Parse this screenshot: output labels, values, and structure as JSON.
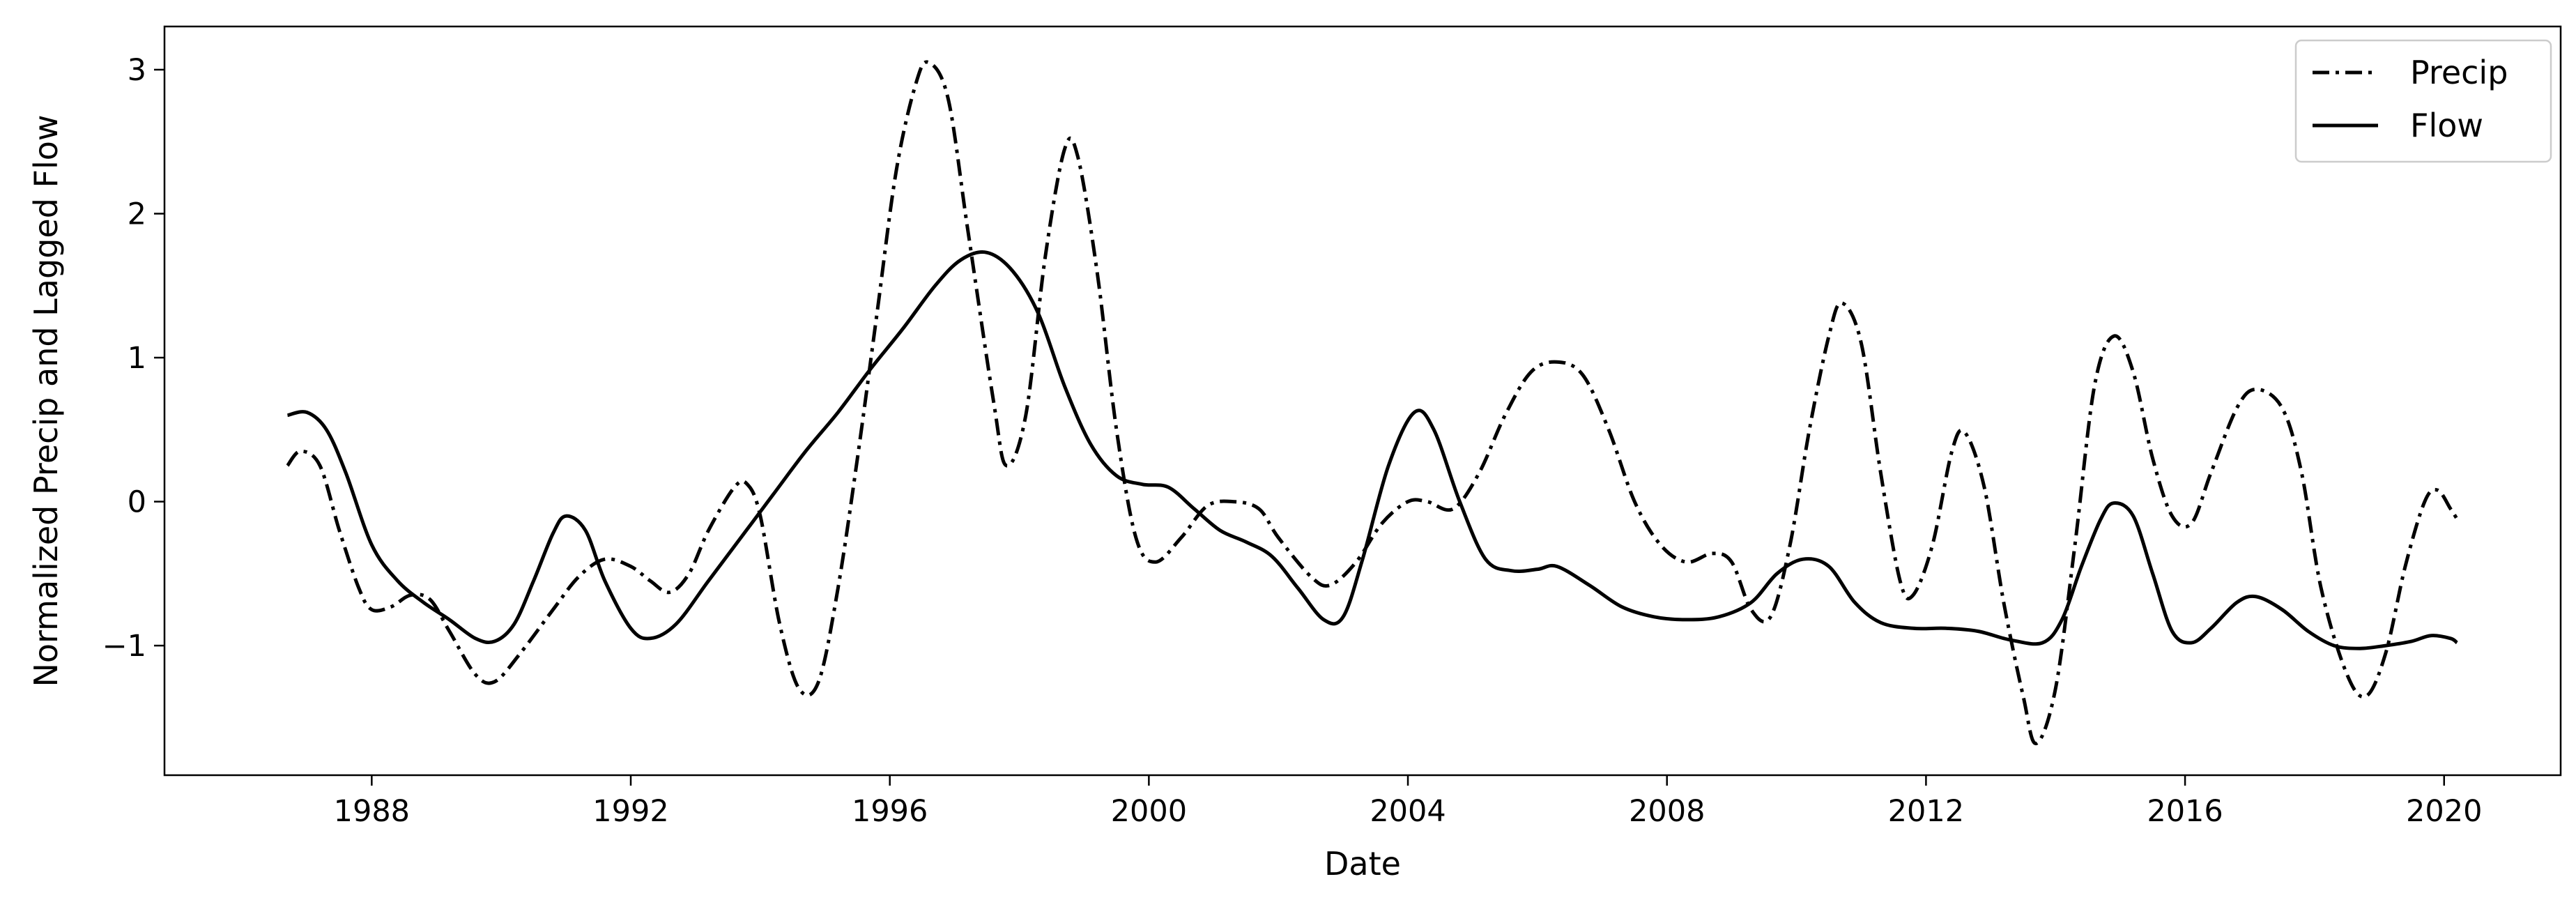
{
  "chart_data": {
    "type": "line",
    "title": "",
    "xlabel": "Date",
    "ylabel": "Normalized Precip and Lagged Flow",
    "xlim": [
      1984.8,
      2021.8
    ],
    "ylim": [
      -1.9,
      3.3
    ],
    "x_ticks": [
      1988,
      1992,
      1996,
      2000,
      2004,
      2008,
      2012,
      2016,
      2020
    ],
    "x_tick_labels": [
      "1988",
      "1992",
      "1996",
      "2000",
      "2004",
      "2008",
      "2012",
      "2016",
      "2020"
    ],
    "y_ticks": [
      -1,
      0,
      1,
      2,
      3
    ],
    "y_tick_labels": [
      "−1",
      "0",
      "1",
      "2",
      "3"
    ],
    "grid": false,
    "legend_position": "top-right",
    "series": [
      {
        "name": "Precip",
        "style": "dashdot",
        "color": "#000000",
        "points": [
          [
            1986.7,
            0.25
          ],
          [
            1986.9,
            0.35
          ],
          [
            1987.2,
            0.25
          ],
          [
            1987.5,
            -0.2
          ],
          [
            1987.8,
            -0.6
          ],
          [
            1988.0,
            -0.75
          ],
          [
            1988.3,
            -0.73
          ],
          [
            1988.6,
            -0.65
          ],
          [
            1988.9,
            -0.68
          ],
          [
            1989.2,
            -0.9
          ],
          [
            1989.6,
            -1.2
          ],
          [
            1989.9,
            -1.25
          ],
          [
            1990.3,
            -1.05
          ],
          [
            1990.8,
            -0.75
          ],
          [
            1991.2,
            -0.52
          ],
          [
            1991.6,
            -0.4
          ],
          [
            1992.0,
            -0.45
          ],
          [
            1992.3,
            -0.55
          ],
          [
            1992.6,
            -0.63
          ],
          [
            1992.9,
            -0.5
          ],
          [
            1993.2,
            -0.2
          ],
          [
            1993.6,
            0.1
          ],
          [
            1993.8,
            0.12
          ],
          [
            1994.0,
            -0.1
          ],
          [
            1994.3,
            -0.85
          ],
          [
            1994.6,
            -1.3
          ],
          [
            1994.9,
            -1.25
          ],
          [
            1995.2,
            -0.6
          ],
          [
            1995.5,
            0.3
          ],
          [
            1995.8,
            1.3
          ],
          [
            1996.1,
            2.3
          ],
          [
            1996.4,
            2.9
          ],
          [
            1996.6,
            3.05
          ],
          [
            1996.9,
            2.8
          ],
          [
            1997.2,
            1.9
          ],
          [
            1997.6,
            0.7
          ],
          [
            1997.8,
            0.25
          ],
          [
            1998.1,
            0.6
          ],
          [
            1998.4,
            1.7
          ],
          [
            1998.7,
            2.45
          ],
          [
            1998.9,
            2.4
          ],
          [
            1999.2,
            1.6
          ],
          [
            1999.5,
            0.5
          ],
          [
            1999.8,
            -0.25
          ],
          [
            2000.1,
            -0.42
          ],
          [
            2000.5,
            -0.25
          ],
          [
            2000.9,
            -0.03
          ],
          [
            2001.3,
            0.0
          ],
          [
            2001.7,
            -0.05
          ],
          [
            2002.0,
            -0.25
          ],
          [
            2002.5,
            -0.52
          ],
          [
            2002.8,
            -0.58
          ],
          [
            2003.2,
            -0.42
          ],
          [
            2003.6,
            -0.15
          ],
          [
            2004.0,
            0.0
          ],
          [
            2004.3,
            0.0
          ],
          [
            2004.7,
            -0.05
          ],
          [
            2005.1,
            0.2
          ],
          [
            2005.5,
            0.6
          ],
          [
            2005.9,
            0.9
          ],
          [
            2006.3,
            0.97
          ],
          [
            2006.7,
            0.88
          ],
          [
            2007.1,
            0.5
          ],
          [
            2007.5,
            0.0
          ],
          [
            2007.9,
            -0.3
          ],
          [
            2008.3,
            -0.42
          ],
          [
            2008.7,
            -0.36
          ],
          [
            2009.0,
            -0.42
          ],
          [
            2009.3,
            -0.75
          ],
          [
            2009.6,
            -0.8
          ],
          [
            2009.9,
            -0.3
          ],
          [
            2010.2,
            0.5
          ],
          [
            2010.5,
            1.15
          ],
          [
            2010.7,
            1.38
          ],
          [
            2011.0,
            1.1
          ],
          [
            2011.3,
            0.2
          ],
          [
            2011.6,
            -0.55
          ],
          [
            2011.8,
            -0.65
          ],
          [
            2012.1,
            -0.3
          ],
          [
            2012.4,
            0.35
          ],
          [
            2012.6,
            0.48
          ],
          [
            2012.9,
            0.1
          ],
          [
            2013.2,
            -0.7
          ],
          [
            2013.5,
            -1.35
          ],
          [
            2013.7,
            -1.68
          ],
          [
            2014.0,
            -1.3
          ],
          [
            2014.3,
            -0.3
          ],
          [
            2014.6,
            0.8
          ],
          [
            2014.9,
            1.15
          ],
          [
            2015.2,
            0.9
          ],
          [
            2015.5,
            0.3
          ],
          [
            2015.8,
            -0.1
          ],
          [
            2016.1,
            -0.15
          ],
          [
            2016.4,
            0.2
          ],
          [
            2016.8,
            0.65
          ],
          [
            2017.1,
            0.78
          ],
          [
            2017.5,
            0.65
          ],
          [
            2017.8,
            0.2
          ],
          [
            2018.1,
            -0.6
          ],
          [
            2018.5,
            -1.2
          ],
          [
            2018.8,
            -1.35
          ],
          [
            2019.1,
            -1.05
          ],
          [
            2019.4,
            -0.45
          ],
          [
            2019.7,
            0.0
          ],
          [
            2019.9,
            0.08
          ],
          [
            2020.1,
            -0.05
          ],
          [
            2020.2,
            -0.12
          ]
        ]
      },
      {
        "name": "Flow",
        "style": "solid",
        "color": "#000000",
        "points": [
          [
            1986.7,
            0.6
          ],
          [
            1987.0,
            0.62
          ],
          [
            1987.3,
            0.5
          ],
          [
            1987.6,
            0.2
          ],
          [
            1988.0,
            -0.3
          ],
          [
            1988.4,
            -0.55
          ],
          [
            1988.8,
            -0.7
          ],
          [
            1989.2,
            -0.82
          ],
          [
            1989.6,
            -0.95
          ],
          [
            1989.9,
            -0.97
          ],
          [
            1990.2,
            -0.85
          ],
          [
            1990.5,
            -0.55
          ],
          [
            1990.8,
            -0.22
          ],
          [
            1991.0,
            -0.1
          ],
          [
            1991.3,
            -0.2
          ],
          [
            1991.6,
            -0.55
          ],
          [
            1992.0,
            -0.88
          ],
          [
            1992.3,
            -0.95
          ],
          [
            1992.7,
            -0.85
          ],
          [
            1993.2,
            -0.55
          ],
          [
            1993.7,
            -0.25
          ],
          [
            1994.2,
            0.05
          ],
          [
            1994.7,
            0.35
          ],
          [
            1995.2,
            0.62
          ],
          [
            1995.7,
            0.92
          ],
          [
            1996.2,
            1.2
          ],
          [
            1996.7,
            1.5
          ],
          [
            1997.1,
            1.68
          ],
          [
            1997.5,
            1.73
          ],
          [
            1997.9,
            1.6
          ],
          [
            1998.3,
            1.3
          ],
          [
            1998.7,
            0.8
          ],
          [
            1999.1,
            0.4
          ],
          [
            1999.5,
            0.18
          ],
          [
            1999.9,
            0.12
          ],
          [
            2000.3,
            0.1
          ],
          [
            2000.7,
            -0.05
          ],
          [
            2001.1,
            -0.2
          ],
          [
            2001.5,
            -0.28
          ],
          [
            2001.9,
            -0.38
          ],
          [
            2002.3,
            -0.6
          ],
          [
            2002.7,
            -0.82
          ],
          [
            2003.0,
            -0.8
          ],
          [
            2003.3,
            -0.4
          ],
          [
            2003.7,
            0.25
          ],
          [
            2004.1,
            0.62
          ],
          [
            2004.4,
            0.5
          ],
          [
            2004.8,
            0.0
          ],
          [
            2005.2,
            -0.4
          ],
          [
            2005.6,
            -0.48
          ],
          [
            2006.0,
            -0.47
          ],
          [
            2006.3,
            -0.45
          ],
          [
            2006.8,
            -0.58
          ],
          [
            2007.3,
            -0.73
          ],
          [
            2007.8,
            -0.8
          ],
          [
            2008.3,
            -0.82
          ],
          [
            2008.8,
            -0.8
          ],
          [
            2009.3,
            -0.7
          ],
          [
            2009.7,
            -0.5
          ],
          [
            2010.1,
            -0.4
          ],
          [
            2010.5,
            -0.45
          ],
          [
            2010.9,
            -0.7
          ],
          [
            2011.3,
            -0.84
          ],
          [
            2011.8,
            -0.88
          ],
          [
            2012.3,
            -0.88
          ],
          [
            2012.8,
            -0.9
          ],
          [
            2013.3,
            -0.96
          ],
          [
            2013.8,
            -0.98
          ],
          [
            2014.1,
            -0.82
          ],
          [
            2014.4,
            -0.45
          ],
          [
            2014.7,
            -0.12
          ],
          [
            2014.9,
            -0.01
          ],
          [
            2015.2,
            -0.1
          ],
          [
            2015.5,
            -0.5
          ],
          [
            2015.8,
            -0.9
          ],
          [
            2016.1,
            -0.98
          ],
          [
            2016.4,
            -0.88
          ],
          [
            2016.8,
            -0.7
          ],
          [
            2017.1,
            -0.66
          ],
          [
            2017.5,
            -0.75
          ],
          [
            2017.9,
            -0.9
          ],
          [
            2018.3,
            -1.0
          ],
          [
            2018.7,
            -1.02
          ],
          [
            2019.1,
            -1.0
          ],
          [
            2019.5,
            -0.97
          ],
          [
            2019.8,
            -0.93
          ],
          [
            2020.1,
            -0.95
          ],
          [
            2020.2,
            -0.98
          ]
        ]
      }
    ]
  }
}
